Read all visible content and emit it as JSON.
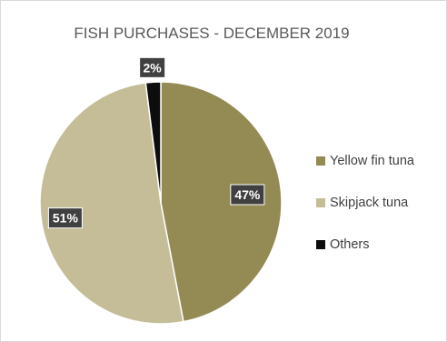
{
  "chart_data": {
    "type": "pie",
    "title": "FISH PURCHASES - DECEMBER 2019",
    "categories": [
      "Yellow fin tuna",
      "Skipjack tuna",
      "Others"
    ],
    "values": [
      47,
      51,
      2
    ],
    "labels": [
      "47%",
      "51%",
      "2%"
    ],
    "colors": [
      "#948a54",
      "#c4bd97",
      "#0d0d0d"
    ],
    "legend_position": "right",
    "start_angle_deg": 0,
    "direction": "clockwise"
  }
}
